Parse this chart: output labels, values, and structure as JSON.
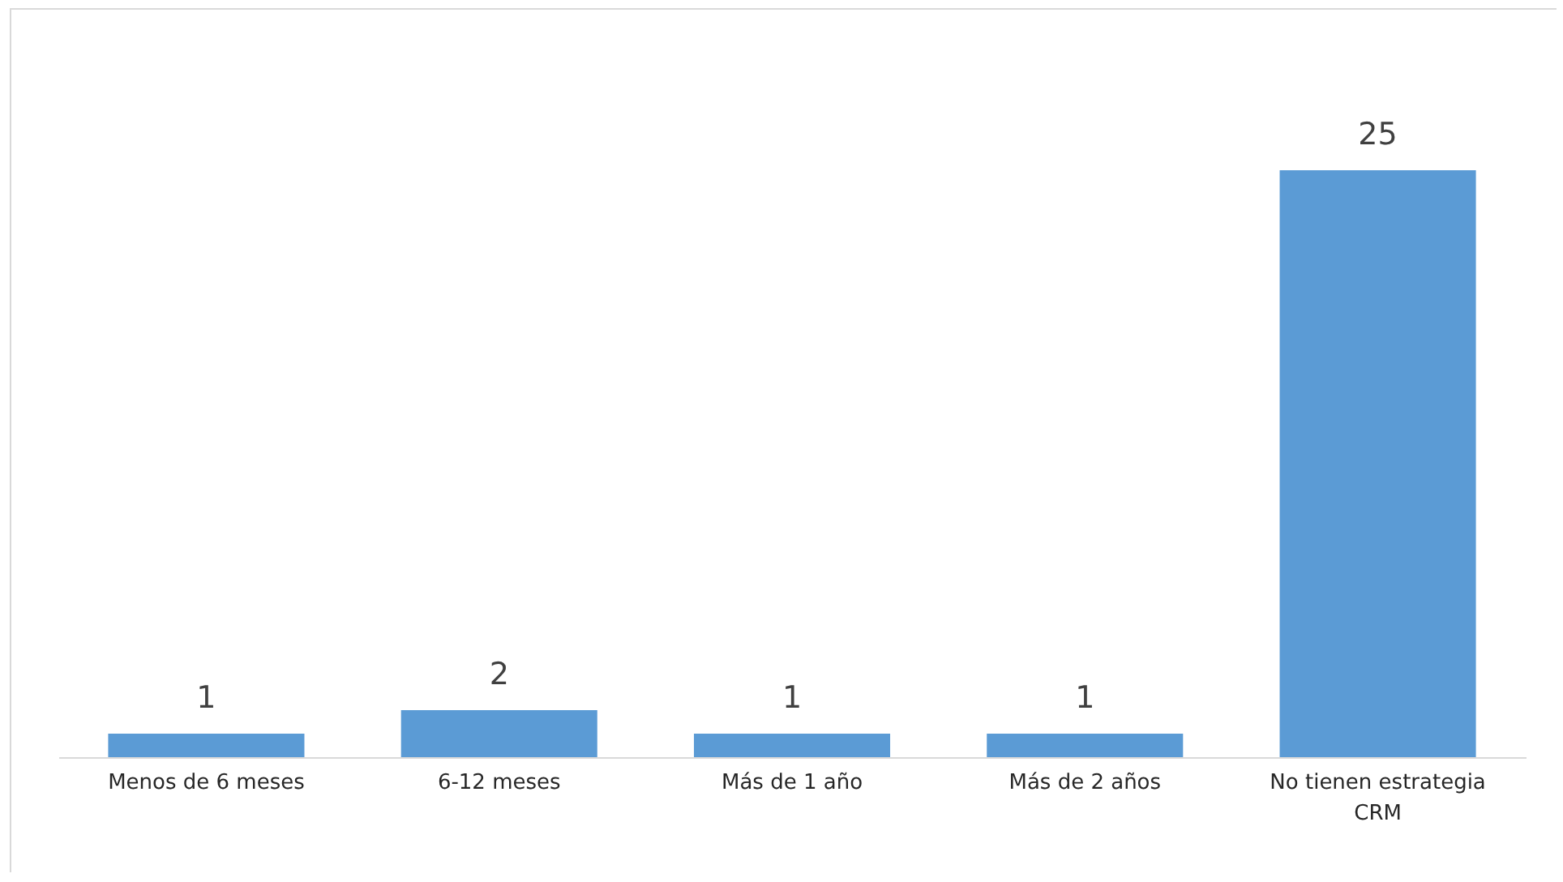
{
  "chart_data": {
    "type": "bar",
    "categories": [
      "Menos de 6 meses",
      "6-12 meses",
      "Más de 1 año",
      "Más de 2 años",
      "No tienen estrategia CRM"
    ],
    "values": [
      1,
      2,
      1,
      1,
      25
    ],
    "color": "#5b9bd5",
    "data_labels": true
  }
}
